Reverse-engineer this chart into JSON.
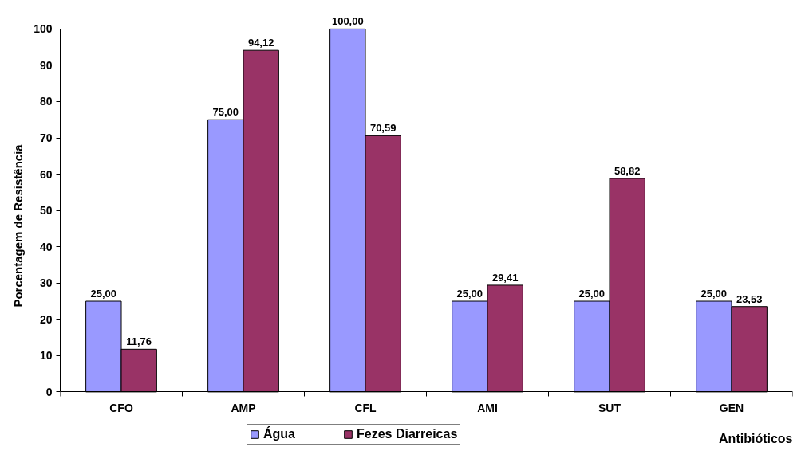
{
  "chart_data": {
    "type": "bar",
    "ylabel": "Porcentagem de Resistência",
    "xlabel": "Antibióticos",
    "categories": [
      "CFO",
      "AMP",
      "CFL",
      "AMI",
      "SUT",
      "GEN"
    ],
    "series": [
      {
        "name": "Água",
        "color": "#9999ff",
        "values": [
          25,
          75,
          100,
          25,
          25,
          25
        ],
        "value_labels": [
          "25,00",
          "75,00",
          "100,00",
          "25,00",
          "25,00",
          "25,00"
        ]
      },
      {
        "name": "Fezes Diarreicas",
        "color": "#993366",
        "values": [
          11.76,
          94.12,
          70.59,
          29.41,
          58.82,
          23.53
        ],
        "value_labels": [
          "11,76",
          "94,12",
          "70,59",
          "29,41",
          "58,82",
          "23,53"
        ]
      }
    ],
    "ylim": [
      0,
      100
    ],
    "yticks": [
      0,
      10,
      20,
      30,
      40,
      50,
      60,
      70,
      80,
      90,
      100
    ],
    "grid": false,
    "legend": "bottom"
  }
}
